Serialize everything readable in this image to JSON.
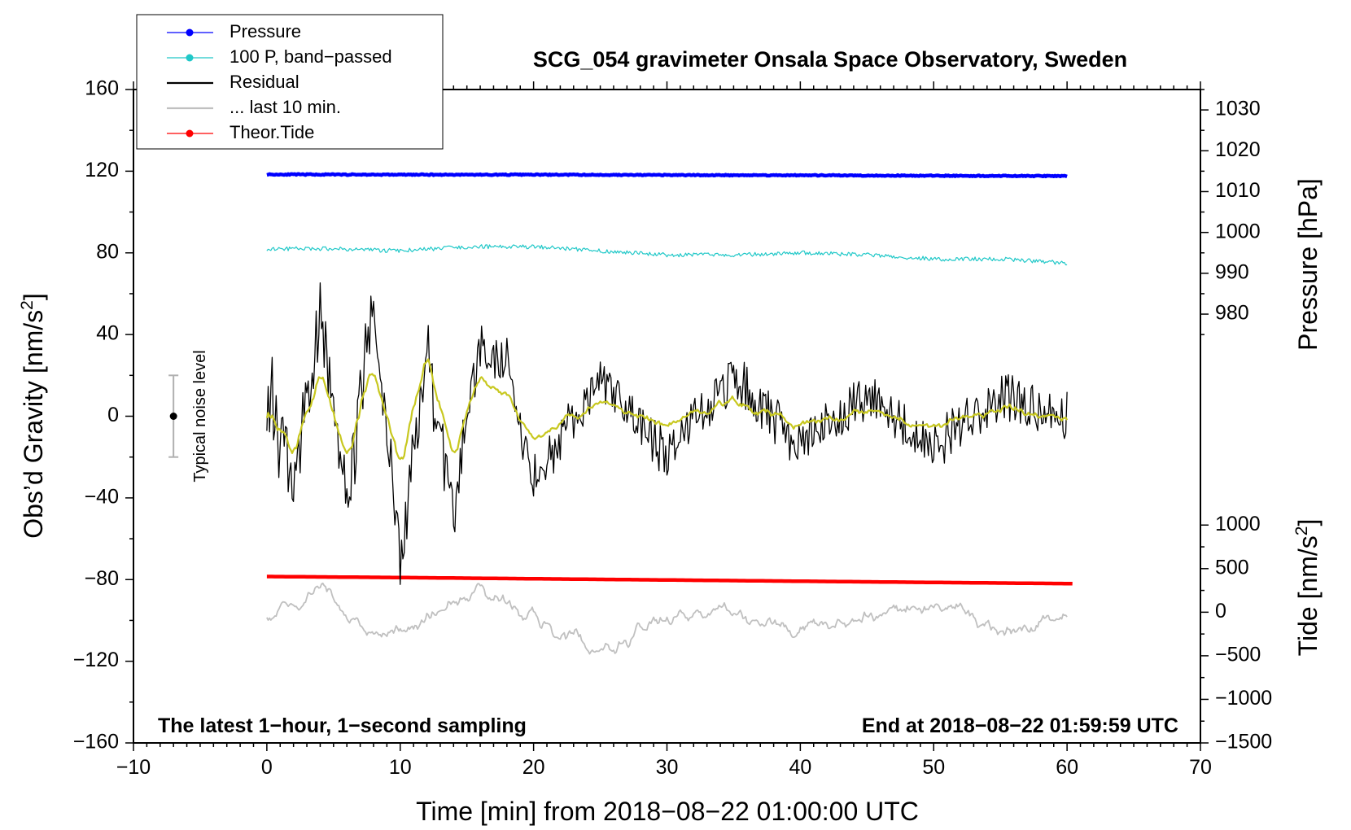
{
  "chart_data": {
    "type": "line",
    "title": "SCG_054 gravimeter Onsala Space Observatory, Sweden",
    "xlabel": "Time [min] from 2018−08−22 01:00:00 UTC",
    "ylabel": "Obs’d Gravity [nm/s",
    "ylabel_sup": "2",
    "ylabel_close": "]",
    "xlim": [
      -10,
      70
    ],
    "ylim": [
      -160,
      160
    ],
    "x_ticks": [
      -10,
      0,
      10,
      20,
      30,
      40,
      50,
      60,
      70
    ],
    "x_tick_labels": [
      "−10",
      "0",
      "10",
      "20",
      "30",
      "40",
      "50",
      "60",
      "70"
    ],
    "y_ticks": [
      -160,
      -120,
      -80,
      -40,
      0,
      40,
      80,
      120,
      160
    ],
    "y_tick_labels": [
      "−160",
      "−120",
      "−80",
      "−40",
      "0",
      "40",
      "80",
      "120",
      "160"
    ],
    "pressure_axis": {
      "label": "Pressure [hPa]",
      "ticks": [
        980,
        990,
        1000,
        1010,
        1020,
        1030
      ],
      "tick_labels": [
        "980",
        "990",
        "1000",
        "1010",
        "1020",
        "1030"
      ],
      "range": [
        950,
        1035
      ],
      "gravity_range": [
        -10,
        160
      ]
    },
    "tide_axis": {
      "label": "Tide [nm/s",
      "label_sup": "2",
      "label_close": "]",
      "ticks": [
        -1500,
        -1000,
        -500,
        0,
        500,
        1000
      ],
      "tick_labels": [
        "−1500",
        "−1000",
        "−500",
        "0",
        "500",
        "1000"
      ],
      "range": [
        -1500,
        1000
      ],
      "gravity_range": [
        -160,
        -53.3
      ]
    },
    "annotations": {
      "left": "The latest 1−hour, 1−second sampling",
      "right": "End at 2018−08−22 01:59:59 UTC"
    },
    "noise_indicator": {
      "label": "Typical noise level",
      "x": -7,
      "center": 0,
      "half_range": 20
    },
    "legend": [
      {
        "label": "Pressure",
        "color": "#0000ff",
        "marker": true
      },
      {
        "label": "100 P, band−passed",
        "color": "#20c8c8",
        "marker": true
      },
      {
        "label": "Residual",
        "color": "#000000",
        "marker": false
      },
      {
        "label": "... last 10 min.",
        "color": "#c0c0c0",
        "marker": false
      },
      {
        "label": "Theor.Tide",
        "color": "#ff0000",
        "marker": true
      }
    ],
    "series": [
      {
        "name": "Pressure",
        "color": "#0000ff",
        "x": [
          0,
          10,
          20,
          30,
          40,
          50,
          60
        ],
        "y": [
          118.4,
          118.3,
          118.3,
          118.1,
          118.0,
          117.8,
          117.6
        ]
      },
      {
        "name": "100 P, band−passed",
        "color": "#20c8c8",
        "x": [
          0,
          5,
          10,
          15,
          20,
          25,
          30,
          35,
          40,
          45,
          50,
          55,
          60
        ],
        "y": [
          82,
          82,
          81,
          83,
          83,
          81,
          79,
          79,
          80,
          79,
          77,
          77,
          75
        ]
      },
      {
        "name": "Theor.Tide",
        "color": "#ff0000",
        "x": [
          0,
          10,
          20,
          30,
          40,
          50,
          60.5
        ],
        "y": [
          -78.5,
          -79.0,
          -79.6,
          -80.2,
          -80.8,
          -81.4,
          -82.0
        ]
      },
      {
        "name": "Residual",
        "color": "#000000",
        "x": [
          0,
          2,
          4,
          6,
          8,
          10,
          12,
          14,
          16,
          18,
          20,
          25,
          30,
          35,
          40,
          45,
          50,
          55,
          60
        ],
        "y": [
          15,
          -35,
          45,
          -40,
          55,
          -70,
          30,
          -45,
          35,
          25,
          -30,
          15,
          -20,
          20,
          -15,
          10,
          -15,
          10,
          0
        ]
      },
      {
        "name": "Residual (smoothed)",
        "color": "#c8c820",
        "x": [
          0,
          2,
          4,
          6,
          8,
          10,
          12,
          14,
          16,
          18,
          20,
          25,
          30,
          35,
          40,
          45,
          50,
          55,
          60
        ],
        "y": [
          5,
          -20,
          20,
          -20,
          25,
          -25,
          30,
          -20,
          20,
          10,
          -10,
          5,
          -5,
          8,
          -5,
          3,
          -5,
          4,
          0
        ]
      },
      {
        "name": "... last 10 min.",
        "color": "#c0c0c0",
        "x": [
          0,
          4,
          8,
          12,
          16,
          20,
          25,
          30,
          35,
          40,
          45,
          50,
          55,
          60
        ],
        "y": [
          -98,
          -85,
          -110,
          -98,
          -85,
          -100,
          -115,
          -100,
          -95,
          -105,
          -98,
          -90,
          -105,
          -100
        ]
      }
    ]
  }
}
